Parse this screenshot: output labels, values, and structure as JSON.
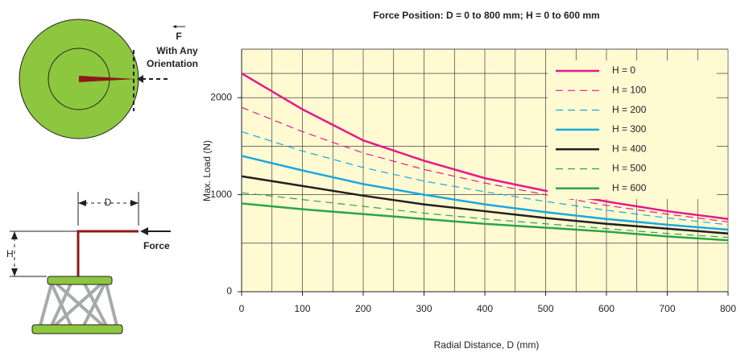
{
  "diagram": {
    "force_label": "F",
    "orientation_label_1": "With Any",
    "orientation_label_2": "Orientation",
    "d_label": "D",
    "h_label": "H",
    "force_text": "Force"
  },
  "chart_data": {
    "type": "line",
    "title": "Force Position: D = 0 to 800 mm; H = 0 to 600 mm",
    "x_label": "Radial Distance, D (mm)",
    "y_label": "Max. Load (N)",
    "x": [
      0,
      100,
      200,
      300,
      400,
      500,
      600,
      700,
      800
    ],
    "xlim": [
      0,
      800
    ],
    "xticks": [
      0,
      100,
      200,
      300,
      400,
      500,
      600,
      700,
      800
    ],
    "ylim": [
      0,
      2500
    ],
    "yticks": [
      0,
      1000,
      2000
    ],
    "grid": true,
    "legend": "upper right",
    "series": [
      {
        "name": "H = 0",
        "color": "#e6198a",
        "dashed": false,
        "values": [
          2250,
          1880,
          1560,
          1350,
          1170,
          1040,
          930,
          830,
          750
        ]
      },
      {
        "name": "H = 100",
        "color": "#e6198a",
        "dashed": true,
        "values": [
          1900,
          1650,
          1430,
          1260,
          1120,
          1000,
          890,
          800,
          720
        ]
      },
      {
        "name": "H = 200",
        "color": "#1ba8e0",
        "dashed": true,
        "values": [
          1650,
          1450,
          1280,
          1140,
          1030,
          930,
          840,
          760,
          690
        ]
      },
      {
        "name": "H = 300",
        "color": "#1ba8e0",
        "dashed": false,
        "values": [
          1400,
          1250,
          1110,
          1000,
          900,
          820,
          750,
          690,
          640
        ]
      },
      {
        "name": "H = 400",
        "color": "#231f20",
        "dashed": false,
        "values": [
          1190,
          1090,
          990,
          900,
          830,
          760,
          700,
          650,
          600
        ]
      },
      {
        "name": "H = 500",
        "color": "#2aa548",
        "dashed": true,
        "values": [
          1020,
          950,
          880,
          810,
          750,
          700,
          650,
          600,
          560
        ]
      },
      {
        "name": "H = 600",
        "color": "#2aa548",
        "dashed": false,
        "values": [
          910,
          850,
          800,
          750,
          700,
          660,
          620,
          570,
          530
        ]
      }
    ]
  }
}
